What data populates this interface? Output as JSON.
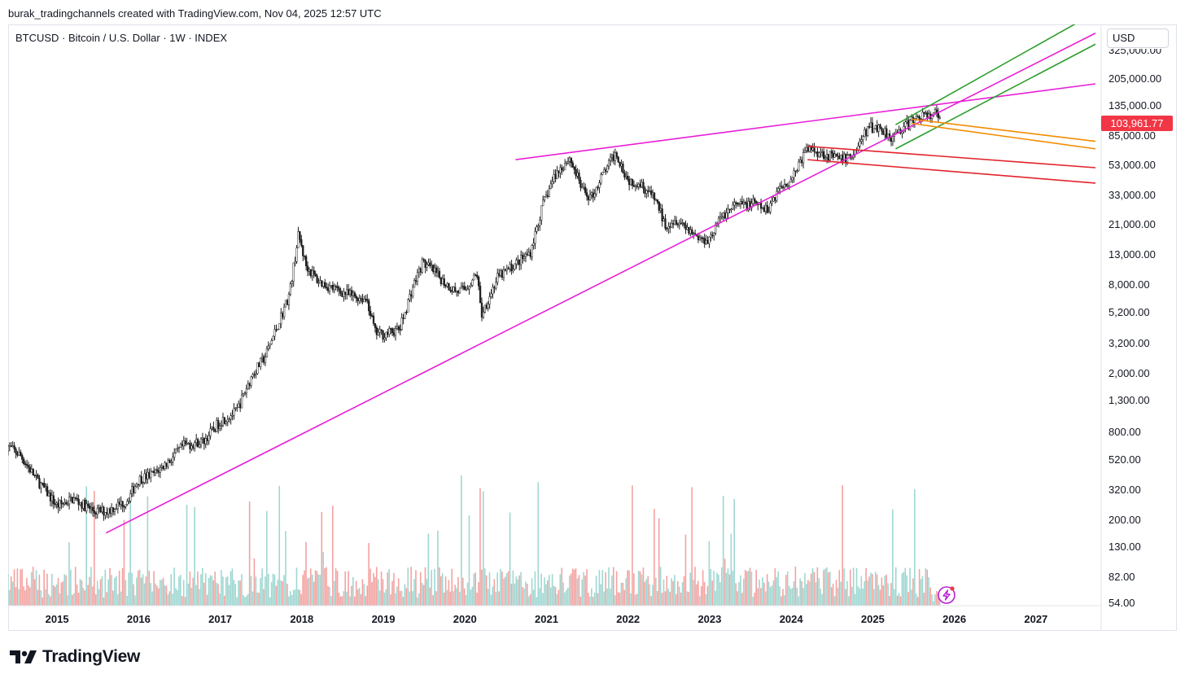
{
  "header": {
    "credit": "burak_tradingchannels created with TradingView.com, Nov 04, 2025 12:57 UTC"
  },
  "symbol": {
    "title": "BTCUSD · Bitcoin / U.S. Dollar · 1W · INDEX"
  },
  "currency": "USD",
  "last_price": "103,961.77",
  "brand": {
    "name": "TradingView",
    "logo_icon": "tradingview-logo-icon"
  },
  "colors": {
    "up": "#26a69a",
    "down": "#ef5350",
    "candle": "#1e1e1e",
    "magenta": "#e91ed8",
    "green": "#2e9e2e",
    "orange": "#f28c00",
    "red": "#e3232c",
    "vol_up": "#9fd7d1",
    "vol_down": "#f3a3a1",
    "badge": "#f23645"
  },
  "chart_data": {
    "type": "candlestick",
    "scale": "log",
    "title": "BTCUSD · Bitcoin / U.S. Dollar · 1W · INDEX",
    "ylim": [
      50,
      560000
    ],
    "xlim": [
      2014.4,
      2027.8
    ],
    "y_ticks": [
      {
        "label": "325,000.00",
        "value": 325000
      },
      {
        "label": "205,000.00",
        "value": 205000
      },
      {
        "label": "135,000.00",
        "value": 135000
      },
      {
        "label": "85,000.00",
        "value": 85000
      },
      {
        "label": "53,000.00",
        "value": 53000
      },
      {
        "label": "33,000.00",
        "value": 33000
      },
      {
        "label": "21,000.00",
        "value": 21000
      },
      {
        "label": "13,000.00",
        "value": 13000
      },
      {
        "label": "8,000.00",
        "value": 8000
      },
      {
        "label": "5,200.00",
        "value": 5200
      },
      {
        "label": "3,200.00",
        "value": 3200
      },
      {
        "label": "2,000.00",
        "value": 2000
      },
      {
        "label": "1,300.00",
        "value": 1300
      },
      {
        "label": "800.00",
        "value": 800
      },
      {
        "label": "520.00",
        "value": 520
      },
      {
        "label": "320.00",
        "value": 320
      },
      {
        "label": "200.00",
        "value": 200
      },
      {
        "label": "130.00",
        "value": 130
      },
      {
        "label": "82.00",
        "value": 82
      },
      {
        "label": "54.00",
        "value": 54
      }
    ],
    "x_ticks": [
      {
        "label": "2015",
        "value": 2015.0
      },
      {
        "label": "2016",
        "value": 2016.0
      },
      {
        "label": "2017",
        "value": 2017.0
      },
      {
        "label": "2018",
        "value": 2018.0
      },
      {
        "label": "2019",
        "value": 2019.0
      },
      {
        "label": "2020",
        "value": 2020.0
      },
      {
        "label": "2021",
        "value": 2021.0
      },
      {
        "label": "2022",
        "value": 2022.0
      },
      {
        "label": "2023",
        "value": 2023.0
      },
      {
        "label": "2024",
        "value": 2024.0
      },
      {
        "label": "2025",
        "value": 2025.0
      },
      {
        "label": "2026",
        "value": 2026.0
      },
      {
        "label": "2027",
        "value": 2027.0
      }
    ],
    "price_path": [
      [
        2014.38,
        650
      ],
      [
        2014.55,
        560
      ],
      [
        2014.75,
        380
      ],
      [
        2015.0,
        250
      ],
      [
        2015.2,
        280
      ],
      [
        2015.45,
        230
      ],
      [
        2015.6,
        230
      ],
      [
        2015.85,
        270
      ],
      [
        2016.0,
        380
      ],
      [
        2016.2,
        420
      ],
      [
        2016.4,
        530
      ],
      [
        2016.55,
        650
      ],
      [
        2016.8,
        700
      ],
      [
        2017.0,
        950
      ],
      [
        2017.2,
        1100
      ],
      [
        2017.4,
        2000
      ],
      [
        2017.55,
        2600
      ],
      [
        2017.7,
        4200
      ],
      [
        2017.85,
        7000
      ],
      [
        2017.96,
        18000
      ],
      [
        2018.05,
        11000
      ],
      [
        2018.2,
        8500
      ],
      [
        2018.4,
        7500
      ],
      [
        2018.6,
        6800
      ],
      [
        2018.8,
        6400
      ],
      [
        2018.9,
        3800
      ],
      [
        2019.0,
        3700
      ],
      [
        2019.2,
        4000
      ],
      [
        2019.35,
        7500
      ],
      [
        2019.48,
        11500
      ],
      [
        2019.6,
        10200
      ],
      [
        2019.75,
        8300
      ],
      [
        2019.9,
        7200
      ],
      [
        2020.0,
        7500
      ],
      [
        2020.15,
        9500
      ],
      [
        2020.2,
        5000
      ],
      [
        2020.4,
        9000
      ],
      [
        2020.6,
        11000
      ],
      [
        2020.8,
        13500
      ],
      [
        2020.95,
        28000
      ],
      [
        2021.1,
        45000
      ],
      [
        2021.28,
        60000
      ],
      [
        2021.45,
        35000
      ],
      [
        2021.55,
        32000
      ],
      [
        2021.7,
        47000
      ],
      [
        2021.85,
        65000
      ],
      [
        2022.0,
        42000
      ],
      [
        2022.15,
        40000
      ],
      [
        2022.35,
        30000
      ],
      [
        2022.45,
        21000
      ],
      [
        2022.6,
        23000
      ],
      [
        2022.75,
        19500
      ],
      [
        2022.9,
        16500
      ],
      [
        2023.0,
        17000
      ],
      [
        2023.15,
        24000
      ],
      [
        2023.3,
        28000
      ],
      [
        2023.55,
        29000
      ],
      [
        2023.7,
        26000
      ],
      [
        2023.85,
        37000
      ],
      [
        2024.0,
        43000
      ],
      [
        2024.2,
        70000
      ],
      [
        2024.4,
        64000
      ],
      [
        2024.6,
        58000
      ],
      [
        2024.75,
        62000
      ],
      [
        2024.95,
        98000
      ],
      [
        2025.1,
        96000
      ],
      [
        2025.25,
        82000
      ],
      [
        2025.35,
        95000
      ],
      [
        2025.5,
        108000
      ],
      [
        2025.6,
        118000
      ],
      [
        2025.7,
        112000
      ],
      [
        2025.75,
        124000
      ],
      [
        2025.84,
        104000
      ]
    ],
    "trendlines": [
      {
        "name": "long-term-support-line",
        "color": "magenta",
        "from": [
          2015.6,
          163
        ],
        "to": [
          2027.73,
          430000
        ]
      },
      {
        "name": "upper-resistance-line",
        "color": "magenta",
        "from": [
          2020.62,
          58000
        ],
        "to": [
          2027.73,
          190000
        ]
      },
      {
        "name": "green-channel-upper",
        "color": "green",
        "from": [
          2025.28,
          101000
        ],
        "to": [
          2027.73,
          600000
        ]
      },
      {
        "name": "green-channel-lower",
        "color": "green",
        "from": [
          2025.28,
          69000
        ],
        "to": [
          2027.73,
          360000
        ]
      },
      {
        "name": "orange-channel-upper",
        "color": "orange",
        "from": [
          2025.48,
          110000
        ],
        "to": [
          2027.73,
          78000
        ]
      },
      {
        "name": "orange-channel-lower",
        "color": "orange",
        "from": [
          2025.48,
          103000
        ],
        "to": [
          2027.73,
          69000
        ]
      },
      {
        "name": "red-channel-upper",
        "color": "red",
        "from": [
          2024.2,
          72000
        ],
        "to": [
          2027.73,
          51000
        ]
      },
      {
        "name": "red-channel-lower",
        "color": "red",
        "from": [
          2024.2,
          58000
        ],
        "to": [
          2027.73,
          40000
        ]
      }
    ]
  }
}
